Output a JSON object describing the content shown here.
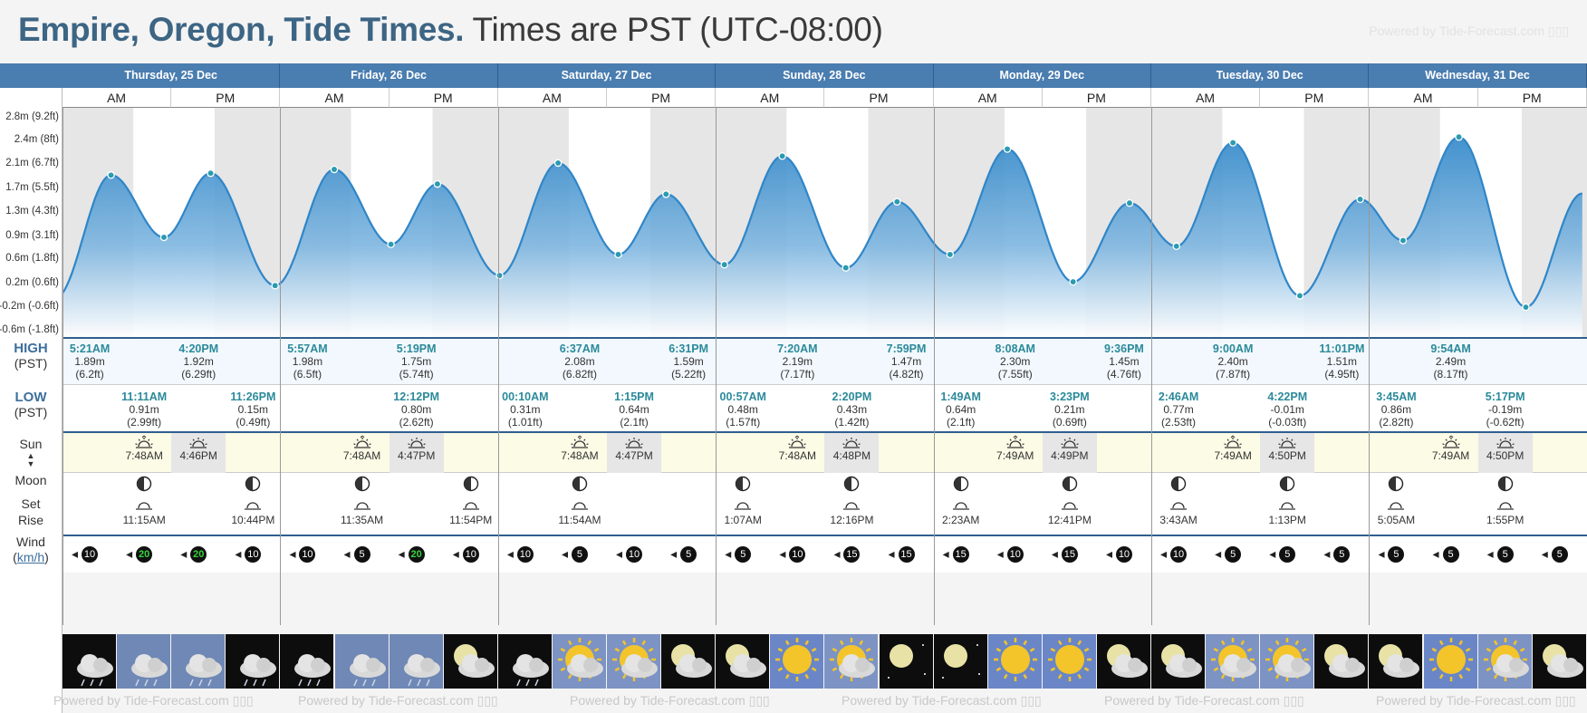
{
  "header": {
    "place": "Empire, Oregon, Tide Times.",
    "timezone": "Times are PST (UTC-08:00)",
    "powered_by": "Powered by Tide-Forecast.com"
  },
  "labels": {
    "high": "HIGH",
    "high_tz": "(PST)",
    "low": "LOW",
    "low_tz": "(PST)",
    "sun": "Sun",
    "moon": "Moon",
    "set": "Set",
    "rise": "Rise",
    "wind": "Wind",
    "wind_unit": "km/h",
    "am": "AM",
    "pm": "PM"
  },
  "y_axis_ticks": [
    {
      "label": "2.8m (9.2ft)",
      "value": 2.8
    },
    {
      "label": "2.4m (8ft)",
      "value": 2.44
    },
    {
      "label": "2.1m (6.7ft)",
      "value": 2.06
    },
    {
      "label": "1.7m (5.5ft)",
      "value": 1.68
    },
    {
      "label": "1.3m (4.3ft)",
      "value": 1.31
    },
    {
      "label": "0.9m (3.1ft)",
      "value": 0.93
    },
    {
      "label": "0.6m (1.8ft)",
      "value": 0.56
    },
    {
      "label": "0.2m (0.6ft)",
      "value": 0.18
    },
    {
      "label": "-0.2m (-0.6ft)",
      "value": -0.19
    },
    {
      "label": "-0.6m (-1.8ft)",
      "value": -0.56
    }
  ],
  "days": [
    {
      "label": "Thursday, 25 Dec"
    },
    {
      "label": "Friday, 26 Dec"
    },
    {
      "label": "Saturday, 27 Dec"
    },
    {
      "label": "Sunday, 28 Dec"
    },
    {
      "label": "Monday, 29 Dec"
    },
    {
      "label": "Tuesday, 30 Dec"
    },
    {
      "label": "Wednesday, 31 Dec"
    }
  ],
  "tides": [
    {
      "type": "low",
      "hour": -0.8,
      "height": -0.05
    },
    {
      "type": "high",
      "day": 0,
      "time": "5:21AM",
      "hour": 5.35,
      "m": "1.89m",
      "ft": "(6.2ft)",
      "height": 1.89
    },
    {
      "type": "low",
      "day": 0,
      "time": "11:11AM",
      "hour": 11.18,
      "m": "0.91m",
      "ft": "(2.99ft)",
      "height": 0.91
    },
    {
      "type": "high",
      "day": 0,
      "time": "4:20PM",
      "hour": 16.33,
      "m": "1.92m",
      "ft": "(6.29ft)",
      "height": 1.92
    },
    {
      "type": "low",
      "day": 0,
      "time": "11:26PM",
      "hour": 23.43,
      "m": "0.15m",
      "ft": "(0.49ft)",
      "height": 0.15
    },
    {
      "type": "high",
      "day": 1,
      "time": "5:57AM",
      "hour": 29.95,
      "m": "1.98m",
      "ft": "(6.5ft)",
      "height": 1.98
    },
    {
      "type": "low",
      "day": 1,
      "time": "12:12PM",
      "hour": 36.2,
      "m": "0.80m",
      "ft": "(2.62ft)",
      "height": 0.8
    },
    {
      "type": "high",
      "day": 1,
      "time": "5:19PM",
      "hour": 41.32,
      "m": "1.75m",
      "ft": "(5.74ft)",
      "height": 1.75
    },
    {
      "type": "low",
      "day": 2,
      "time": "00:10AM",
      "hour": 48.17,
      "m": "0.31m",
      "ft": "(1.01ft)",
      "height": 0.31
    },
    {
      "type": "high",
      "day": 2,
      "time": "6:37AM",
      "hour": 54.62,
      "m": "2.08m",
      "ft": "(6.82ft)",
      "height": 2.08
    },
    {
      "type": "low",
      "day": 2,
      "time": "1:15PM",
      "hour": 61.25,
      "m": "0.64m",
      "ft": "(2.1ft)",
      "height": 0.64
    },
    {
      "type": "high",
      "day": 2,
      "time": "6:31PM",
      "hour": 66.52,
      "m": "1.59m",
      "ft": "(5.22ft)",
      "height": 1.59
    },
    {
      "type": "low",
      "day": 3,
      "time": "00:57AM",
      "hour": 72.95,
      "m": "0.48m",
      "ft": "(1.57ft)",
      "height": 0.48
    },
    {
      "type": "high",
      "day": 3,
      "time": "7:20AM",
      "hour": 79.33,
      "m": "2.19m",
      "ft": "(7.17ft)",
      "height": 2.19
    },
    {
      "type": "low",
      "day": 3,
      "time": "2:20PM",
      "hour": 86.33,
      "m": "0.43m",
      "ft": "(1.42ft)",
      "height": 0.43
    },
    {
      "type": "high",
      "day": 3,
      "time": "7:59PM",
      "hour": 91.98,
      "m": "1.47m",
      "ft": "(4.82ft)",
      "height": 1.47
    },
    {
      "type": "low",
      "day": 4,
      "time": "1:49AM",
      "hour": 97.82,
      "m": "0.64m",
      "ft": "(2.1ft)",
      "height": 0.64
    },
    {
      "type": "high",
      "day": 4,
      "time": "8:08AM",
      "hour": 104.13,
      "m": "2.30m",
      "ft": "(7.55ft)",
      "height": 2.3
    },
    {
      "type": "low",
      "day": 4,
      "time": "3:23PM",
      "hour": 111.38,
      "m": "0.21m",
      "ft": "(0.69ft)",
      "height": 0.21
    },
    {
      "type": "high",
      "day": 4,
      "time": "9:36PM",
      "hour": 117.6,
      "m": "1.45m",
      "ft": "(4.76ft)",
      "height": 1.45
    },
    {
      "type": "low",
      "day": 5,
      "time": "2:46AM",
      "hour": 122.77,
      "m": "0.77m",
      "ft": "(2.53ft)",
      "height": 0.77
    },
    {
      "type": "high",
      "day": 5,
      "time": "9:00AM",
      "hour": 129.0,
      "m": "2.40m",
      "ft": "(7.87ft)",
      "height": 2.4
    },
    {
      "type": "low",
      "day": 5,
      "time": "4:22PM",
      "hour": 136.37,
      "m": "-0.01m",
      "ft": "(-0.03ft)",
      "height": -0.01
    },
    {
      "type": "high",
      "day": 5,
      "time": "11:01PM",
      "hour": 143.02,
      "m": "1.51m",
      "ft": "(4.95ft)",
      "height": 1.51
    },
    {
      "type": "low",
      "day": 6,
      "time": "3:45AM",
      "hour": 147.75,
      "m": "0.86m",
      "ft": "(2.82ft)",
      "height": 0.86
    },
    {
      "type": "high",
      "day": 6,
      "time": "9:54AM",
      "hour": 153.9,
      "m": "2.49m",
      "ft": "(8.17ft)",
      "height": 2.49
    },
    {
      "type": "low",
      "day": 6,
      "time": "5:17PM",
      "hour": 161.28,
      "m": "-0.19m",
      "ft": "(-0.62ft)",
      "height": -0.19
    },
    {
      "type": "high",
      "hour": 167.5,
      "height": 1.6
    }
  ],
  "sun": [
    {
      "rise": "7:48AM",
      "set": "4:46PM",
      "rise_h": 7.8,
      "set_h": 16.77
    },
    {
      "rise": "7:48AM",
      "set": "4:47PM",
      "rise_h": 7.8,
      "set_h": 16.78
    },
    {
      "rise": "7:48AM",
      "set": "4:47PM",
      "rise_h": 7.8,
      "set_h": 16.78
    },
    {
      "rise": "7:48AM",
      "set": "4:48PM",
      "rise_h": 7.8,
      "set_h": 16.8
    },
    {
      "rise": "7:49AM",
      "set": "4:49PM",
      "rise_h": 7.82,
      "set_h": 16.82
    },
    {
      "rise": "7:49AM",
      "set": "4:50PM",
      "rise_h": 7.82,
      "set_h": 16.83
    },
    {
      "rise": "7:49AM",
      "set": "4:50PM",
      "rise_h": 7.82,
      "set_h": 16.83
    }
  ],
  "moon": [
    {
      "slot": 1,
      "time": "11:15AM",
      "kind": "rise"
    },
    {
      "slot": 3,
      "time": "10:44PM",
      "kind": "set"
    },
    {
      "slot": 5,
      "time": "11:35AM",
      "kind": "rise"
    },
    {
      "slot": 7,
      "time": "11:54PM",
      "kind": "set"
    },
    {
      "slot": 9,
      "time": "11:54AM",
      "kind": "rise"
    },
    {
      "slot": 12,
      "time": "1:07AM",
      "kind": "set"
    },
    {
      "slot": 14,
      "time": "12:16PM",
      "kind": "rise"
    },
    {
      "slot": 16,
      "time": "2:23AM",
      "kind": "set"
    },
    {
      "slot": 18,
      "time": "12:41PM",
      "kind": "rise"
    },
    {
      "slot": 20,
      "time": "3:43AM",
      "kind": "set"
    },
    {
      "slot": 22,
      "time": "1:13PM",
      "kind": "rise"
    },
    {
      "slot": 24,
      "time": "5:05AM",
      "kind": "set"
    },
    {
      "slot": 26,
      "time": "1:55PM",
      "kind": "rise"
    }
  ],
  "wind": [
    {
      "v": "10",
      "green": false
    },
    {
      "v": "20",
      "green": true
    },
    {
      "v": "20",
      "green": true
    },
    {
      "v": "10",
      "green": false
    },
    {
      "v": "10",
      "green": false
    },
    {
      "v": "5",
      "green": false
    },
    {
      "v": "20",
      "green": true
    },
    {
      "v": "10",
      "green": false
    },
    {
      "v": "10",
      "green": false
    },
    {
      "v": "5",
      "green": false
    },
    {
      "v": "10",
      "green": false
    },
    {
      "v": "5",
      "green": false
    },
    {
      "v": "5",
      "green": false
    },
    {
      "v": "10",
      "green": false
    },
    {
      "v": "15",
      "green": false
    },
    {
      "v": "15",
      "green": false
    },
    {
      "v": "15",
      "green": false
    },
    {
      "v": "10",
      "green": false
    },
    {
      "v": "15",
      "green": false
    },
    {
      "v": "10",
      "green": false
    },
    {
      "v": "10",
      "green": false
    },
    {
      "v": "5",
      "green": false
    },
    {
      "v": "5",
      "green": false
    },
    {
      "v": "5",
      "green": false
    },
    {
      "v": "5",
      "green": false
    },
    {
      "v": "5",
      "green": false
    },
    {
      "v": "5",
      "green": false
    },
    {
      "v": "5",
      "green": false
    }
  ],
  "weather": [
    "rain-night-icon",
    "rain-day-icon",
    "rain-day-icon",
    "rain-night-icon",
    "rain-night-icon",
    "rain-day-icon",
    "rain-day-icon",
    "moon-cloud-icon",
    "rain-night-icon",
    "sun-cloud-icon",
    "sun-cloud-icon",
    "moon-cloud-icon",
    "moon-cloud-icon",
    "sun-icon",
    "sun-cloud-icon",
    "clear-night-icon",
    "clear-night-icon",
    "sun-icon",
    "sun-icon",
    "moon-cloud-icon",
    "moon-cloud-icon",
    "sun-cloud-icon",
    "sun-cloud-icon",
    "moon-cloud-icon",
    "moon-cloud-icon",
    "sun-icon",
    "sun-cloud-icon",
    "moon-cloud-icon"
  ]
}
